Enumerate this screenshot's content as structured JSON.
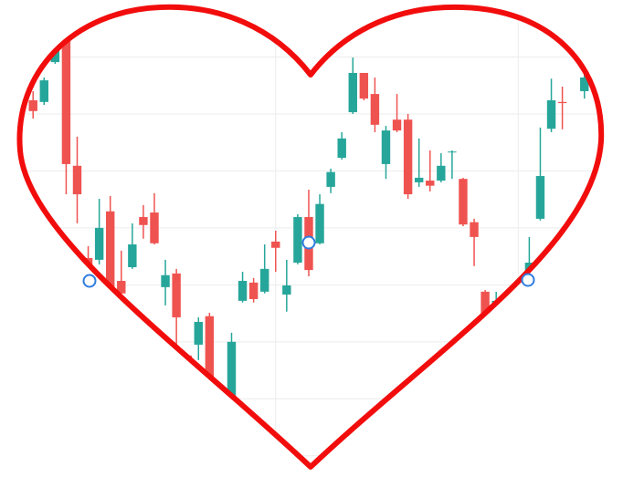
{
  "chart_data": {
    "type": "candlestick",
    "x": [
      0,
      1,
      2,
      3,
      4,
      5,
      6,
      7,
      8,
      9,
      10,
      11,
      12,
      13,
      14,
      15,
      16,
      17,
      18,
      19,
      20,
      21,
      22,
      23,
      24,
      25,
      26,
      27,
      28,
      29,
      30,
      31,
      32,
      33,
      34,
      35,
      36,
      37,
      38,
      39,
      40,
      41,
      42,
      45,
      46,
      47,
      48,
      50
    ],
    "open": [
      62.4,
      62.1,
      69.1,
      72.8,
      50.9,
      34.7,
      34.4,
      42.9,
      30.7,
      33.1,
      41.9,
      42.7,
      29.6,
      32,
      17.6,
      19.5,
      24.5,
      9.9,
      8,
      27.2,
      30.4,
      28.8,
      37.6,
      28.3,
      33.9,
      41.9,
      37.3,
      47.2,
      52.3,
      60.3,
      67.2,
      63.5,
      51.2,
      59,
      59,
      48,
      48.3,
      48.3,
      53.3,
      48.6,
      41,
      28.8,
      22.4,
      32.3,
      41.6,
      57.4,
      62.1,
      64
    ],
    "high": [
      64,
      66.4,
      73.6,
      73.9,
      56,
      36.8,
      45.1,
      45.6,
      36,
      40.8,
      44,
      46.1,
      34.4,
      32.8,
      17.6,
      24.3,
      25.1,
      10.4,
      21.6,
      32.3,
      31.2,
      37.1,
      39.5,
      34.4,
      42.4,
      46.7,
      45.9,
      50.4,
      56.8,
      69.9,
      67.2,
      66.4,
      57.9,
      63.5,
      60,
      55.7,
      53.6,
      53.1,
      53.6,
      48.8,
      41.6,
      29.1,
      28.8,
      38.4,
      57.6,
      66.2,
      64.8,
      67.5
    ],
    "low": [
      59.2,
      61.6,
      68.8,
      45.9,
      40.8,
      30.4,
      33.6,
      27.2,
      24.8,
      32.8,
      38.1,
      37.1,
      26.4,
      18.7,
      14.4,
      16.8,
      8.8,
      7.7,
      8,
      26.9,
      26.9,
      28.5,
      32.3,
      25.3,
      33.6,
      31.5,
      37.1,
      46.1,
      52,
      60,
      62.4,
      56.8,
      48.6,
      56.8,
      45.1,
      47.2,
      46.4,
      48,
      48.6,
      40.3,
      33.3,
      19.2,
      21.6,
      32,
      41.3,
      56.8,
      57.3,
      62.7
    ],
    "close": [
      60.5,
      65.9,
      72.8,
      51.2,
      45.9,
      32.3,
      40,
      28.5,
      28.5,
      37.1,
      40.5,
      37.3,
      31.7,
      24.3,
      16.5,
      23.5,
      9.6,
      8,
      20,
      30.7,
      27.5,
      32.8,
      36.5,
      29.9,
      41.9,
      32.6,
      44.2,
      49.8,
      55.7,
      67.2,
      62.7,
      58.1,
      57.1,
      57.1,
      45.9,
      48.8,
      47.4,
      50.9,
      53.4,
      40.6,
      38.4,
      19.2,
      27.2,
      33.9,
      49.1,
      62.4,
      61.9,
      66.4
    ],
    "up_color": "#26a69a",
    "down_color": "#ef5350",
    "xlim": [
      -3,
      53.5
    ],
    "ylim": [
      -5,
      80
    ],
    "xticks": [
      22,
      44
    ],
    "yticks": [
      0,
      10,
      20,
      30,
      40,
      50,
      60,
      70
    ],
    "grid": true
  }
}
